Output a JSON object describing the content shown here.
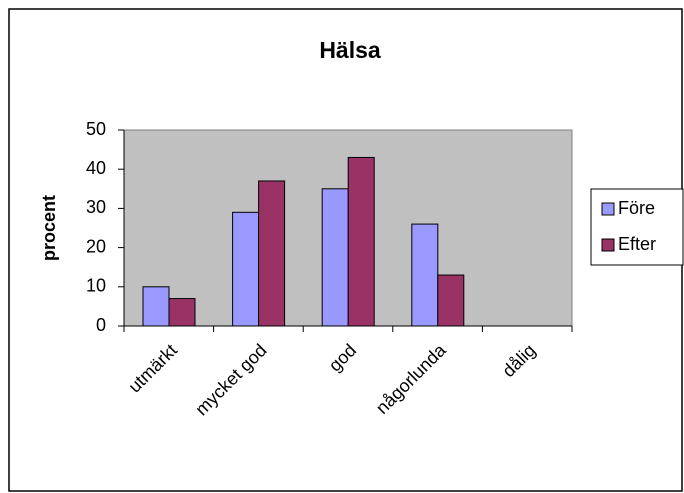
{
  "chart_data": {
    "type": "bar",
    "title": "Hälsa",
    "y_label": "procent",
    "categories": [
      "utmärkt",
      "mycket god",
      "god",
      "någorlunda",
      "dålig"
    ],
    "series": [
      {
        "name": "Före",
        "color": "#9999ff",
        "values": [
          10,
          29,
          35,
          26,
          0
        ]
      },
      {
        "name": "Efter",
        "color": "#993366",
        "values": [
          7,
          37,
          43,
          13,
          0
        ]
      }
    ],
    "ylim": [
      0,
      50
    ],
    "yticks": [
      0,
      10,
      20,
      30,
      40,
      50
    ],
    "grid": false,
    "legend": "right"
  }
}
